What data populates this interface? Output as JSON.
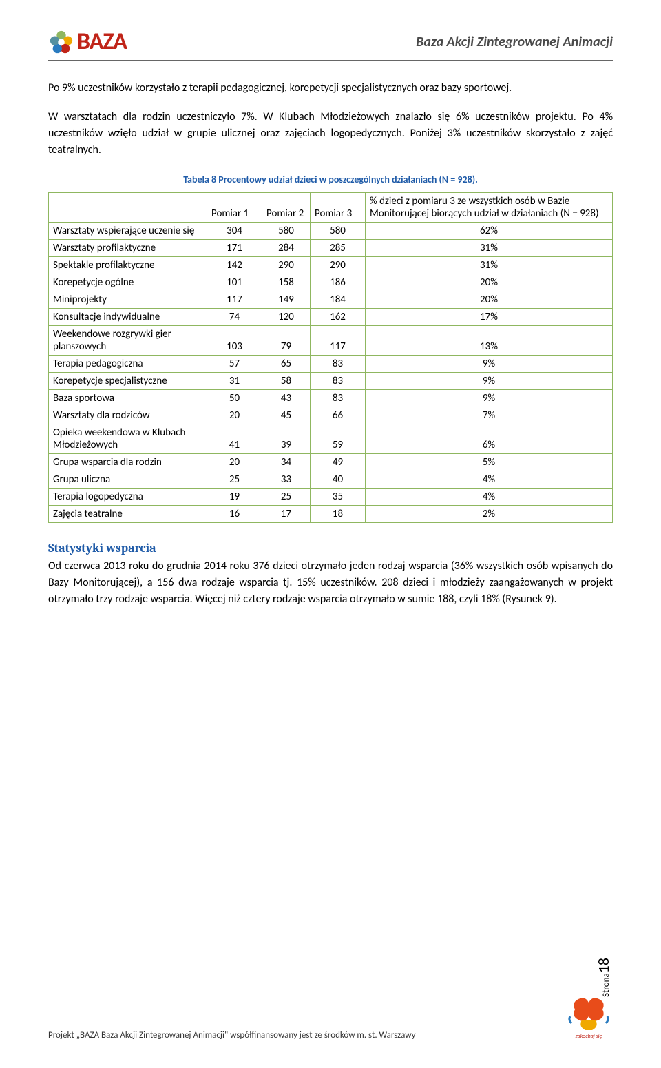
{
  "header": {
    "brand": "BAZA",
    "title": "Baza Akcji Zintegrowanej Animacji"
  },
  "paragraphs": {
    "p1": "Po 9% uczestników korzystało z terapii pedagogicznej, korepetycji specjalistycznych oraz bazy sportowej.",
    "p2": "W warsztatach dla rodzin uczestniczyło 7%. W Klubach Młodzieżowych znalazło się 6% uczestników projektu. Po 4% uczestników wzięło udział w grupie ulicznej oraz zajęciach logopedycznych. Poniżej 3% uczestników skorzystało z zajęć teatralnych."
  },
  "table": {
    "caption": "Tabela 8 Procentowy udział dzieci w poszczególnych działaniach (N = 928).",
    "headers": {
      "c0": "",
      "c1": "Pomiar 1",
      "c2": "Pomiar 2",
      "c3": "Pomiar 3",
      "c4": "% dzieci z pomiaru 3 ze wszystkich osób w Bazie Monitorującej biorących udział w działaniach (N = 928)"
    },
    "rows": [
      {
        "name": "Warsztaty wspierające uczenie się",
        "p1": "304",
        "p2": "580",
        "p3": "580",
        "pct": "62%"
      },
      {
        "name": "Warsztaty profilaktyczne",
        "p1": "171",
        "p2": "284",
        "p3": "285",
        "pct": "31%"
      },
      {
        "name": "Spektakle profilaktyczne",
        "p1": "142",
        "p2": "290",
        "p3": "290",
        "pct": "31%"
      },
      {
        "name": "Korepetycje ogólne",
        "p1": "101",
        "p2": "158",
        "p3": "186",
        "pct": "20%"
      },
      {
        "name": "Miniprojekty",
        "p1": "117",
        "p2": "149",
        "p3": "184",
        "pct": "20%"
      },
      {
        "name": "Konsultacje indywidualne",
        "p1": "74",
        "p2": "120",
        "p3": "162",
        "pct": "17%"
      },
      {
        "name": "Weekendowe rozgrywki gier planszowych",
        "p1": "103",
        "p2": "79",
        "p3": "117",
        "pct": "13%"
      },
      {
        "name": "Terapia pedagogiczna",
        "p1": "57",
        "p2": "65",
        "p3": "83",
        "pct": "9%"
      },
      {
        "name": "Korepetycje specjalistyczne",
        "p1": "31",
        "p2": "58",
        "p3": "83",
        "pct": "9%"
      },
      {
        "name": "Baza sportowa",
        "p1": "50",
        "p2": "43",
        "p3": "83",
        "pct": "9%"
      },
      {
        "name": "Warsztaty dla rodziców",
        "p1": "20",
        "p2": "45",
        "p3": "66",
        "pct": "7%"
      },
      {
        "name": "Opieka weekendowa w Klubach Młodzieżowych",
        "p1": "41",
        "p2": "39",
        "p3": "59",
        "pct": "6%"
      },
      {
        "name": "Grupa wsparcia dla rodzin",
        "p1": "20",
        "p2": "34",
        "p3": "49",
        "pct": "5%"
      },
      {
        "name": "Grupa uliczna",
        "p1": "25",
        "p2": "33",
        "p3": "40",
        "pct": "4%"
      },
      {
        "name": "Terapia logopedyczna",
        "p1": "19",
        "p2": "25",
        "p3": "35",
        "pct": "4%"
      },
      {
        "name": "Zajęcia teatralne",
        "p1": "16",
        "p2": "17",
        "p3": "18",
        "pct": "2%"
      }
    ]
  },
  "section": {
    "title": "Statystyki wsparcia",
    "body": "Od czerwca 2013 roku do grudnia 2014 roku 376 dzieci otrzymało jeden rodzaj wsparcia (36% wszystkich osób wpisanych do Bazy Monitorującej), a 156 dwa rodzaje wsparcia tj. 15% uczestników. 208 dzieci i młodzieży zaangażowanych w projekt otrzymało trzy rodzaje wsparcia. Więcej niż cztery rodzaje wsparcia otrzymało w sumie 188, czyli 18% (Rysunek 9)."
  },
  "footer": {
    "text": "Projekt „BAZA Baza Akcji Zintegrowanej Animacji\" współfinansowany jest ze środków m. st. Warszawy",
    "page_label": "Strona",
    "page_number": "18"
  },
  "colors": {
    "brand_red": "#c02418",
    "link_blue": "#1f5ba8",
    "table_border": "#8fb760"
  }
}
